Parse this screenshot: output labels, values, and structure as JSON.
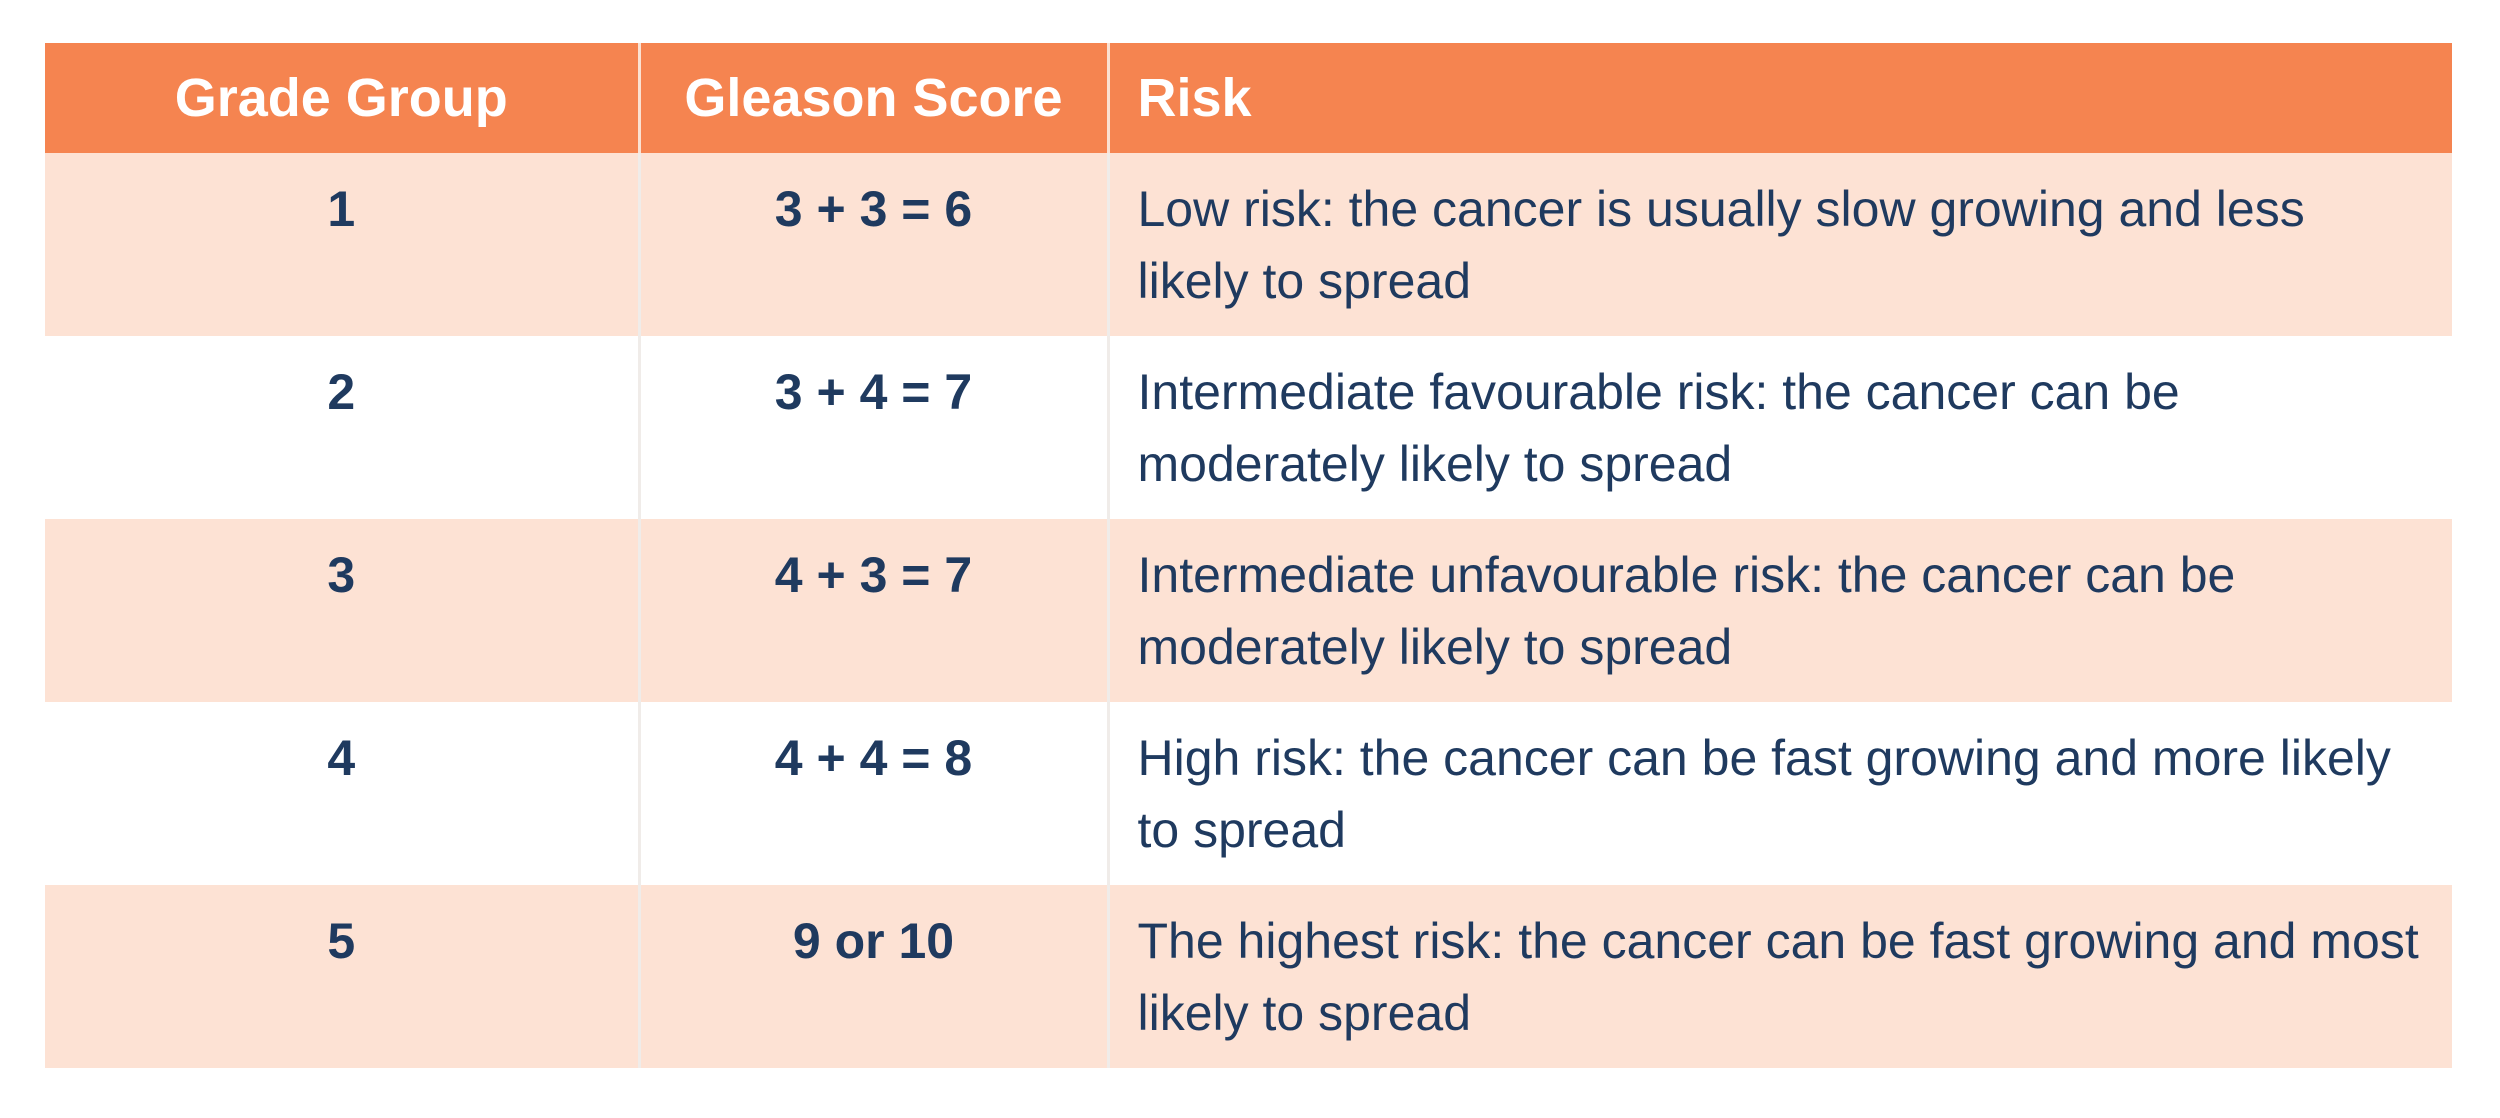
{
  "table": {
    "columns": [
      "Grade Group",
      "Gleason Score",
      "Risk"
    ],
    "rows": [
      [
        "1",
        "3 + 3 = 6",
        "Low risk: the cancer is usually slow growing and less likely to spread"
      ],
      [
        "2",
        "3 + 4 = 7",
        "Intermediate favourable risk: the cancer can be moderately likely to spread"
      ],
      [
        "3",
        "4 + 3 = 7",
        "Intermediate unfavourable risk: the cancer can be moderately likely to spread"
      ],
      [
        "4",
        "4 + 4 = 8",
        "High risk: the cancer can be fast growing and more likely to spread"
      ],
      [
        "5",
        "9 or 10",
        "The highest risk: the cancer can be fast growing and most likely to spread"
      ]
    ]
  }
}
